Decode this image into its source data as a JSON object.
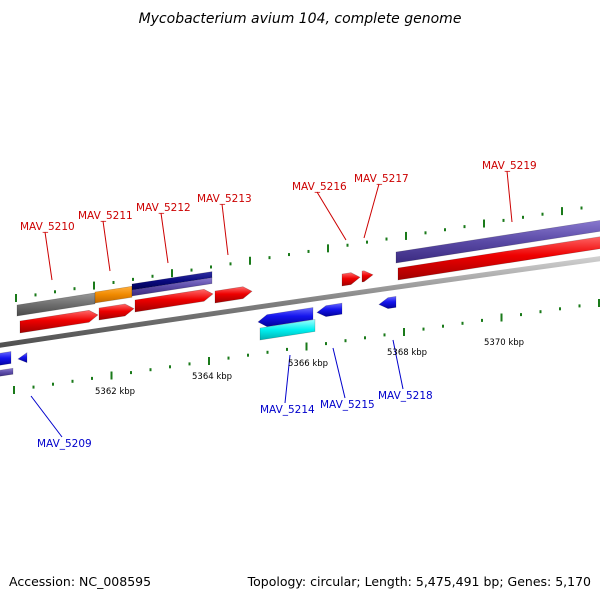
{
  "title": "Mycobacterium avium 104, complete genome",
  "footer": {
    "accession": "Accession: NC_008595",
    "summary": "Topology: circular; Length: 5,475,491 bp; Genes: 5,170"
  },
  "colors": {
    "forward_label": "#cc0000",
    "reverse_label": "#0000cc",
    "tick": "#1a7a1a",
    "backbone": "#808080",
    "cds_red": "#ee0000",
    "cds_blue": "#1515ee",
    "gene_purple": "#5a4aa6",
    "gene_gray": "#6e6e6e",
    "gene_orange": "#f08a00",
    "gene_navy": "#0a0a80",
    "rna_cyan": "#00f0f0"
  },
  "scale_labels": [
    "5362 kbp",
    "5364 kbp",
    "5366 kbp",
    "5368 kbp",
    "5370 kbp"
  ],
  "forward_genes": [
    "MAV_5210",
    "MAV_5211",
    "MAV_5212",
    "MAV_5213",
    "MAV_5216",
    "MAV_5217",
    "MAV_5219"
  ],
  "reverse_genes": [
    "MAV_5209",
    "MAV_5214",
    "MAV_5215",
    "MAV_5218"
  ]
}
